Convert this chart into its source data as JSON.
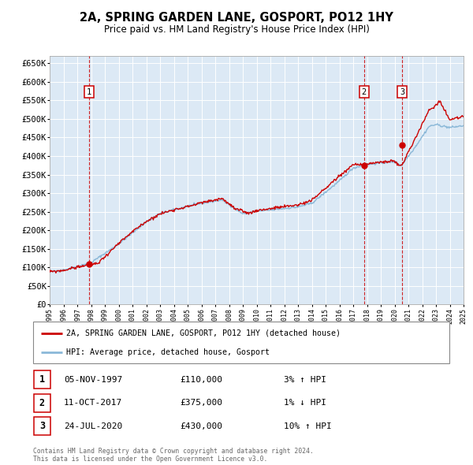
{
  "title": "2A, SPRING GARDEN LANE, GOSPORT, PO12 1HY",
  "subtitle": "Price paid vs. HM Land Registry's House Price Index (HPI)",
  "ylim": [
    0,
    670000
  ],
  "ytick_values": [
    0,
    50000,
    100000,
    150000,
    200000,
    250000,
    300000,
    350000,
    400000,
    450000,
    500000,
    550000,
    600000,
    650000
  ],
  "ytick_labels": [
    "£0",
    "£50K",
    "£100K",
    "£150K",
    "£200K",
    "£250K",
    "£300K",
    "£350K",
    "£400K",
    "£450K",
    "£500K",
    "£550K",
    "£600K",
    "£650K"
  ],
  "x_start_year": 1995,
  "x_end_year": 2025,
  "background_color": "#dce9f5",
  "grid_color": "#ffffff",
  "sale_color": "#cc0000",
  "hpi_color": "#8ab8d8",
  "vline_color": "#cc0000",
  "sale_dates": [
    1997.84,
    2017.78,
    2020.56
  ],
  "sale_values": [
    110000,
    375000,
    430000
  ],
  "sale_labels": [
    "1",
    "2",
    "3"
  ],
  "legend_sale_label": "2A, SPRING GARDEN LANE, GOSPORT, PO12 1HY (detached house)",
  "legend_hpi_label": "HPI: Average price, detached house, Gosport",
  "table_rows": [
    {
      "num": "1",
      "date": "05-NOV-1997",
      "price": "£110,000",
      "hpi": "3% ↑ HPI"
    },
    {
      "num": "2",
      "date": "11-OCT-2017",
      "price": "£375,000",
      "hpi": "1% ↓ HPI"
    },
    {
      "num": "3",
      "date": "24-JUL-2020",
      "price": "£430,000",
      "hpi": "10% ↑ HPI"
    }
  ],
  "footer": "Contains HM Land Registry data © Crown copyright and database right 2024.\nThis data is licensed under the Open Government Licence v3.0."
}
